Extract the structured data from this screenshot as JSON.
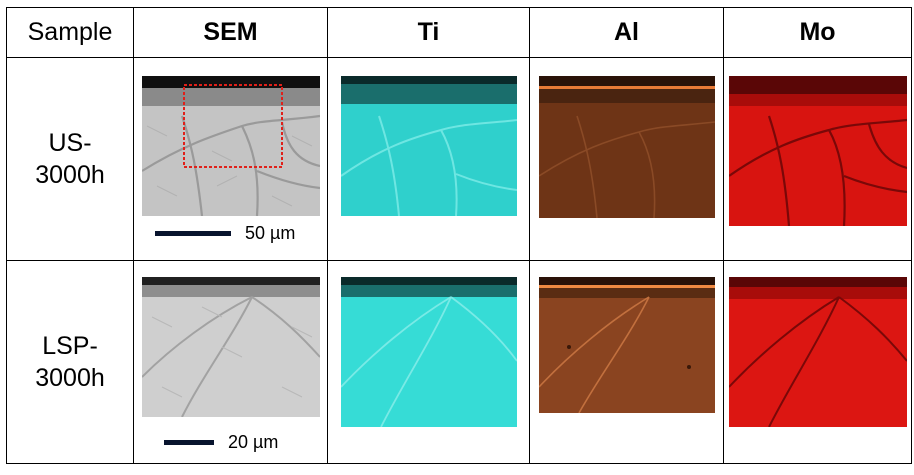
{
  "table": {
    "corner_label": "Sample",
    "columns": [
      "SEM",
      "Ti",
      "Al",
      "Mo"
    ],
    "rows": [
      {
        "label_line1": "US-",
        "label_line2": "3000h",
        "scale_label": "50 µm"
      },
      {
        "label_line1": "LSP-",
        "label_line2": "3000h",
        "scale_label": "20 µm"
      }
    ]
  },
  "colors": {
    "sem": "#c8c8c8",
    "ti": "#2fd6d0",
    "al": "#7a3a18",
    "mo": "#d81410",
    "inset_box": "#e0201a",
    "scale_bar": "#08142e"
  },
  "icons": [
    "sem-micrograph",
    "ti-eds-map",
    "al-eds-map",
    "mo-eds-map",
    "scale-bar"
  ]
}
